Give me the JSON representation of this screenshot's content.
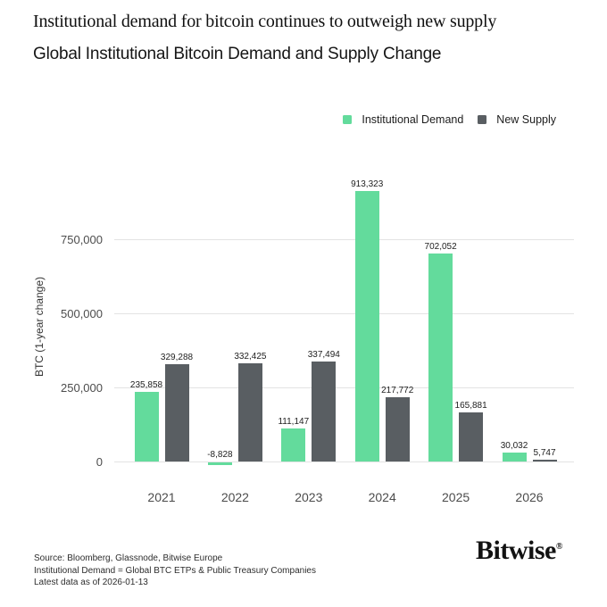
{
  "page": {
    "eyebrow": "Institutional demand for bitcoin continues to outweigh new supply",
    "title": "Global Institutional Bitcoin Demand and Supply Change"
  },
  "chart_data": {
    "type": "bar",
    "title": "Global Institutional Bitcoin Demand and Supply Change",
    "categories": [
      "2021",
      "2022",
      "2023",
      "2024",
      "2025",
      "2026"
    ],
    "series": [
      {
        "name": "Institutional Demand",
        "color": "#63db9c",
        "values": [
          235858,
          -8828,
          111147,
          913323,
          702052,
          30032
        ]
      },
      {
        "name": "New Supply",
        "color": "#595e62",
        "values": [
          329288,
          332425,
          337494,
          217772,
          165881,
          5747
        ]
      }
    ],
    "xlabel": "",
    "ylabel": "BTC (1-year change)",
    "ylim": [
      -20000,
      950000
    ],
    "yticks": [
      0,
      250000,
      500000,
      750000
    ],
    "grid": true,
    "legend_position": "top-right",
    "value_labels": true
  },
  "footer": {
    "lines": [
      "Source: Bloomberg, Glassnode, Bitwise Europe",
      "Institutional Demand = Global BTC ETPs & Public Treasury Companies",
      "Latest data as of 2026-01-13"
    ]
  },
  "logo": {
    "text": "Bitwise",
    "registered": "®"
  }
}
